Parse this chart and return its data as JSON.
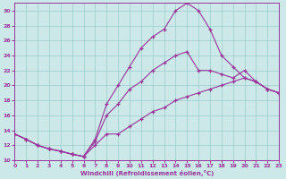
{
  "bg_color": "#cce8e8",
  "line_color": "#993399",
  "grid_color": "#99cccc",
  "xlim": [
    0,
    23
  ],
  "ylim": [
    10,
    31
  ],
  "xticks": [
    0,
    1,
    2,
    3,
    4,
    5,
    6,
    7,
    8,
    9,
    10,
    11,
    12,
    13,
    14,
    15,
    16,
    17,
    18,
    19,
    20,
    21,
    22,
    23
  ],
  "yticks": [
    10,
    12,
    14,
    16,
    18,
    20,
    22,
    24,
    26,
    28,
    30
  ],
  "xlabel": "Windchill (Refroidissement éolien,°C)",
  "line_top_x": [
    0,
    1,
    2,
    3,
    4,
    5,
    6,
    7,
    8,
    9,
    10,
    11,
    12,
    13,
    14,
    15,
    16,
    17,
    18,
    19,
    20,
    21,
    22,
    23
  ],
  "line_top_y": [
    13.5,
    12.8,
    12.0,
    11.5,
    11.2,
    10.8,
    10.5,
    12.8,
    17.5,
    20.0,
    22.5,
    25.0,
    26.5,
    27.5,
    30.0,
    31.0,
    30.0,
    27.5,
    24.0,
    22.5,
    21.0,
    20.5,
    19.5,
    19.0
  ],
  "line_mid_x": [
    0,
    1,
    2,
    3,
    4,
    5,
    6,
    7,
    8,
    9,
    10,
    11,
    12,
    13,
    14,
    15,
    16,
    17,
    18,
    19,
    20,
    21,
    22,
    23
  ],
  "line_mid_y": [
    13.5,
    12.8,
    12.0,
    11.5,
    11.2,
    10.8,
    10.5,
    12.5,
    16.0,
    17.5,
    19.5,
    20.5,
    22.0,
    23.0,
    24.0,
    24.5,
    22.0,
    22.0,
    21.5,
    21.0,
    22.0,
    20.5,
    19.5,
    19.0
  ],
  "line_bot_x": [
    0,
    1,
    2,
    3,
    4,
    5,
    6,
    7,
    8,
    9,
    10,
    11,
    12,
    13,
    14,
    15,
    16,
    17,
    18,
    19,
    20,
    21,
    22,
    23
  ],
  "line_bot_y": [
    13.5,
    12.8,
    12.0,
    11.5,
    11.2,
    10.8,
    10.5,
    12.0,
    13.5,
    13.5,
    14.5,
    15.5,
    16.5,
    17.0,
    18.0,
    18.5,
    19.0,
    19.5,
    20.0,
    20.5,
    21.0,
    20.5,
    19.5,
    19.0
  ]
}
